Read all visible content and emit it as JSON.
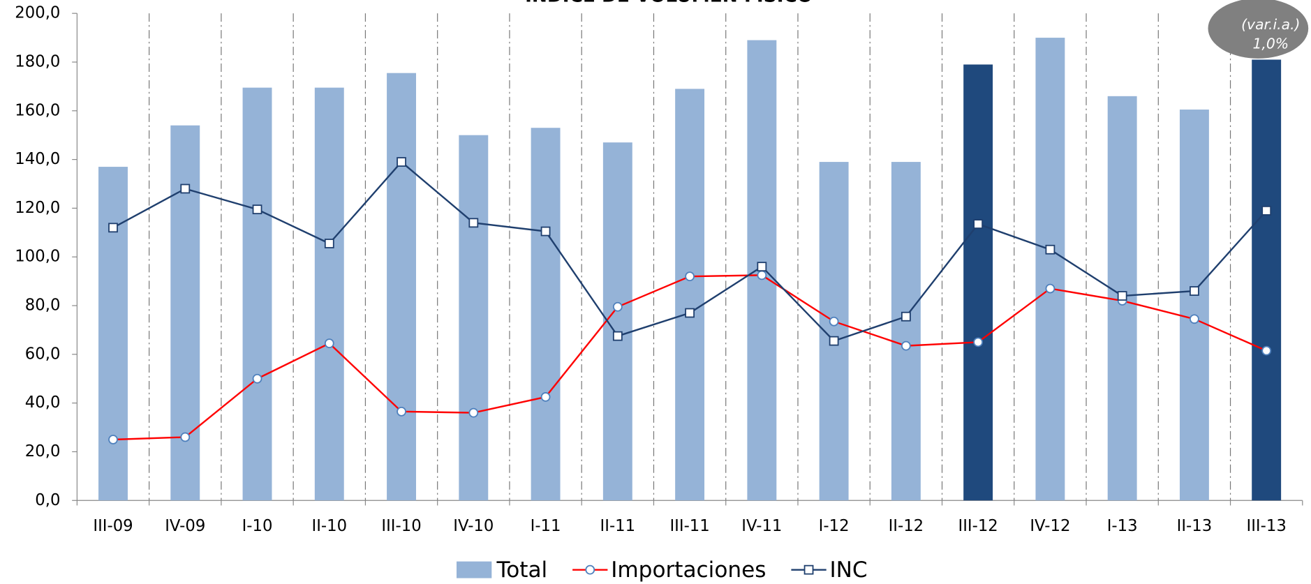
{
  "chart_data": {
    "type": "bar_line",
    "title": "ÍNDICE DE VOLUMEN FÍSICO",
    "annotation": {
      "label": "(var.i.a.)",
      "value_label": "1,0%"
    },
    "categories": [
      "III-09",
      "IV-09",
      "I-10",
      "II-10",
      "III-10",
      "IV-10",
      "I-11",
      "II-11",
      "III-11",
      "IV-11",
      "I-12",
      "II-12",
      "III-12",
      "IV-12",
      "I-13",
      "II-13",
      "III-13"
    ],
    "series": [
      {
        "name": "Total",
        "type": "bar",
        "color": "#95b3d7",
        "highlight_color": "#1f497d",
        "highlight": [
          "III-12",
          "III-13"
        ],
        "values": [
          137,
          154,
          169.5,
          169.5,
          175.5,
          150,
          153,
          147,
          169,
          189,
          139,
          139,
          179,
          190,
          166,
          160.5,
          181
        ]
      },
      {
        "name": "Importaciones",
        "type": "line",
        "marker": "circle",
        "color": "#ff0000",
        "values": [
          25,
          26,
          50,
          64.5,
          36.5,
          36,
          42.5,
          79.5,
          92,
          92.5,
          73.5,
          63.5,
          65,
          87,
          82,
          74.5,
          61.5
        ]
      },
      {
        "name": "INC",
        "type": "line",
        "marker": "square",
        "color": "#1f3f6e",
        "values": [
          112,
          128,
          119.5,
          105.5,
          139,
          114,
          110.5,
          67.5,
          77,
          96,
          65.5,
          75.5,
          113.5,
          103,
          84,
          86,
          119
        ]
      }
    ],
    "ylim": [
      0,
      200
    ],
    "yticks": [
      {
        "value": 0,
        "label": "0,0"
      },
      {
        "value": 20,
        "label": "20,0"
      },
      {
        "value": 40,
        "label": "40,0"
      },
      {
        "value": 60,
        "label": "60,0"
      },
      {
        "value": 80,
        "label": "80,0"
      },
      {
        "value": 100,
        "label": "100,0"
      },
      {
        "value": 120,
        "label": "120,0"
      },
      {
        "value": 140,
        "label": "140,0"
      },
      {
        "value": 160,
        "label": "160,0"
      },
      {
        "value": 180,
        "label": "180,0"
      },
      {
        "value": 200,
        "label": "200,0"
      }
    ],
    "grid": true,
    "legend": "bottom"
  }
}
